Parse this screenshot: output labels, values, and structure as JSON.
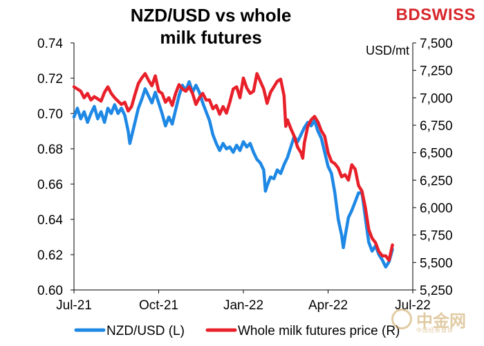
{
  "brand": {
    "logo_text_1": "BD",
    "logo_text_2": "SWISS"
  },
  "watermark": {
    "text": "中金网",
    "subtext": "中国经新媒体"
  },
  "chart_data": {
    "type": "line",
    "title": "NZD/USD vs whole milk futures",
    "title_lines": [
      "NZD/USD vs whole",
      "milk futures"
    ],
    "right_axis_unit": "USD/mt",
    "x_ticks": [
      "Jul-21",
      "Oct-21",
      "Jan-22",
      "Apr-22",
      "Jul-22"
    ],
    "ylim_left": [
      0.6,
      0.74
    ],
    "left_ticks": [
      "0.60",
      "0.62",
      "0.64",
      "0.66",
      "0.68",
      "0.70",
      "0.72",
      "0.74"
    ],
    "ylim_right": [
      5250,
      7500
    ],
    "right_ticks": [
      "5,250",
      "5,500",
      "5,750",
      "6,000",
      "6,250",
      "6,500",
      "6,750",
      "7,000",
      "7,250",
      "7,500"
    ],
    "legend_position": "bottom",
    "series": [
      {
        "name": "NZD/USD (L)",
        "axis": "left",
        "color": "#1e88e5",
        "points": [
          [
            0.0,
            0.698
          ],
          [
            0.1,
            0.703
          ],
          [
            0.2,
            0.697
          ],
          [
            0.3,
            0.701
          ],
          [
            0.4,
            0.695
          ],
          [
            0.5,
            0.7
          ],
          [
            0.6,
            0.704
          ],
          [
            0.7,
            0.697
          ],
          [
            0.8,
            0.701
          ],
          [
            0.9,
            0.695
          ],
          [
            1.0,
            0.703
          ],
          [
            1.1,
            0.7
          ],
          [
            1.2,
            0.705
          ],
          [
            1.3,
            0.7
          ],
          [
            1.4,
            0.703
          ],
          [
            1.5,
            0.699
          ],
          [
            1.6,
            0.69
          ],
          [
            1.65,
            0.683
          ],
          [
            1.7,
            0.687
          ],
          [
            1.8,
            0.695
          ],
          [
            1.9,
            0.703
          ],
          [
            2.0,
            0.708
          ],
          [
            2.1,
            0.714
          ],
          [
            2.2,
            0.71
          ],
          [
            2.3,
            0.706
          ],
          [
            2.4,
            0.712
          ],
          [
            2.5,
            0.706
          ],
          [
            2.6,
            0.7
          ],
          [
            2.7,
            0.693
          ],
          [
            2.8,
            0.698
          ],
          [
            2.9,
            0.694
          ],
          [
            3.0,
            0.702
          ],
          [
            3.1,
            0.71
          ],
          [
            3.2,
            0.716
          ],
          [
            3.3,
            0.713
          ],
          [
            3.4,
            0.718
          ],
          [
            3.5,
            0.712
          ],
          [
            3.6,
            0.716
          ],
          [
            3.7,
            0.712
          ],
          [
            3.8,
            0.706
          ],
          [
            3.9,
            0.701
          ],
          [
            4.0,
            0.696
          ],
          [
            4.1,
            0.688
          ],
          [
            4.2,
            0.683
          ],
          [
            4.3,
            0.679
          ],
          [
            4.4,
            0.683
          ],
          [
            4.5,
            0.68
          ],
          [
            4.6,
            0.681
          ],
          [
            4.7,
            0.678
          ],
          [
            4.8,
            0.682
          ],
          [
            4.9,
            0.679
          ],
          [
            5.0,
            0.684
          ],
          [
            5.1,
            0.681
          ],
          [
            5.2,
            0.683
          ],
          [
            5.3,
            0.678
          ],
          [
            5.4,
            0.674
          ],
          [
            5.5,
            0.672
          ],
          [
            5.6,
            0.668
          ],
          [
            5.65,
            0.656
          ],
          [
            5.7,
            0.659
          ],
          [
            5.8,
            0.664
          ],
          [
            5.9,
            0.663
          ],
          [
            6.0,
            0.668
          ],
          [
            6.1,
            0.666
          ],
          [
            6.2,
            0.671
          ],
          [
            6.3,
            0.675
          ],
          [
            6.4,
            0.681
          ],
          [
            6.5,
            0.687
          ],
          [
            6.6,
            0.684
          ],
          [
            6.7,
            0.688
          ],
          [
            6.8,
            0.692
          ],
          [
            6.9,
            0.695
          ],
          [
            7.0,
            0.693
          ],
          [
            7.1,
            0.696
          ],
          [
            7.2,
            0.69
          ],
          [
            7.3,
            0.686
          ],
          [
            7.4,
            0.678
          ],
          [
            7.5,
            0.67
          ],
          [
            7.6,
            0.666
          ],
          [
            7.7,
            0.655
          ],
          [
            7.8,
            0.64
          ],
          [
            7.9,
            0.631
          ],
          [
            7.95,
            0.624
          ],
          [
            8.0,
            0.63
          ],
          [
            8.1,
            0.641
          ],
          [
            8.2,
            0.645
          ],
          [
            8.3,
            0.65
          ],
          [
            8.4,
            0.655
          ],
          [
            8.5,
            0.655
          ],
          [
            8.55,
            0.648
          ],
          [
            8.6,
            0.641
          ],
          [
            8.7,
            0.627
          ],
          [
            8.8,
            0.622
          ],
          [
            8.9,
            0.625
          ],
          [
            9.0,
            0.62
          ],
          [
            9.1,
            0.617
          ],
          [
            9.2,
            0.613
          ],
          [
            9.3,
            0.616
          ],
          [
            9.4,
            0.623
          ]
        ]
      },
      {
        "name": "Whole milk futures price (R)",
        "axis": "right",
        "color": "#e8202a",
        "points": [
          [
            0.0,
            7100
          ],
          [
            0.1,
            7080
          ],
          [
            0.2,
            7060
          ],
          [
            0.3,
            7000
          ],
          [
            0.4,
            7040
          ],
          [
            0.5,
            6980
          ],
          [
            0.6,
            7010
          ],
          [
            0.7,
            6990
          ],
          [
            0.8,
            6970
          ],
          [
            0.9,
            7050
          ],
          [
            1.0,
            7100
          ],
          [
            1.1,
            7040
          ],
          [
            1.2,
            7000
          ],
          [
            1.3,
            6970
          ],
          [
            1.4,
            6940
          ],
          [
            1.5,
            6960
          ],
          [
            1.6,
            6880
          ],
          [
            1.7,
            6920
          ],
          [
            1.8,
            7030
          ],
          [
            1.9,
            7130
          ],
          [
            2.0,
            7180
          ],
          [
            2.1,
            7220
          ],
          [
            2.2,
            7160
          ],
          [
            2.3,
            7110
          ],
          [
            2.4,
            7200
          ],
          [
            2.5,
            7060
          ],
          [
            2.6,
            7040
          ],
          [
            2.7,
            6960
          ],
          [
            2.8,
            7000
          ],
          [
            2.9,
            6930
          ],
          [
            3.0,
            7040
          ],
          [
            3.1,
            7120
          ],
          [
            3.2,
            7080
          ],
          [
            3.3,
            7060
          ],
          [
            3.4,
            7100
          ],
          [
            3.5,
            7040
          ],
          [
            3.6,
            6940
          ],
          [
            3.7,
            7000
          ],
          [
            3.8,
            7040
          ],
          [
            3.9,
            6980
          ],
          [
            4.0,
            6980
          ],
          [
            4.1,
            6900
          ],
          [
            4.2,
            6930
          ],
          [
            4.3,
            6850
          ],
          [
            4.4,
            6920
          ],
          [
            4.5,
            6860
          ],
          [
            4.6,
            6960
          ],
          [
            4.7,
            7080
          ],
          [
            4.8,
            7100
          ],
          [
            4.9,
            7000
          ],
          [
            5.0,
            7180
          ],
          [
            5.1,
            7090
          ],
          [
            5.2,
            7040
          ],
          [
            5.3,
            7060
          ],
          [
            5.4,
            7220
          ],
          [
            5.5,
            7150
          ],
          [
            5.6,
            7080
          ],
          [
            5.7,
            6950
          ],
          [
            5.8,
            7050
          ],
          [
            5.9,
            7100
          ],
          [
            6.0,
            7150
          ],
          [
            6.1,
            7170
          ],
          [
            6.2,
            7020
          ],
          [
            6.25,
            6740
          ],
          [
            6.3,
            6800
          ],
          [
            6.4,
            6720
          ],
          [
            6.5,
            6650
          ],
          [
            6.6,
            6550
          ],
          [
            6.7,
            6500
          ],
          [
            6.75,
            6450
          ],
          [
            6.8,
            6590
          ],
          [
            6.9,
            6740
          ],
          [
            7.0,
            6800
          ],
          [
            7.1,
            6830
          ],
          [
            7.2,
            6780
          ],
          [
            7.3,
            6700
          ],
          [
            7.4,
            6650
          ],
          [
            7.5,
            6500
          ],
          [
            7.6,
            6420
          ],
          [
            7.7,
            6400
          ],
          [
            7.8,
            6360
          ],
          [
            7.9,
            6280
          ],
          [
            8.0,
            6300
          ],
          [
            8.1,
            6250
          ],
          [
            8.2,
            6390
          ],
          [
            8.3,
            6350
          ],
          [
            8.4,
            6200
          ],
          [
            8.5,
            6150
          ],
          [
            8.6,
            6000
          ],
          [
            8.7,
            5800
          ],
          [
            8.8,
            5720
          ],
          [
            8.9,
            5680
          ],
          [
            9.0,
            5600
          ],
          [
            9.1,
            5560
          ],
          [
            9.2,
            5560
          ],
          [
            9.3,
            5520
          ],
          [
            9.4,
            5660
          ]
        ]
      }
    ]
  }
}
